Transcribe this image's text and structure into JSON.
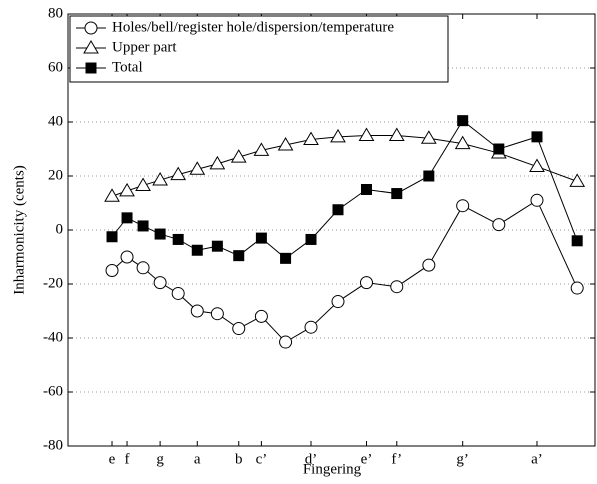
{
  "chart_data": {
    "type": "line",
    "y_label": "Inharmonicity (cents)",
    "x_label": "Fingering",
    "x": [
      1,
      1.059,
      1.122,
      1.189,
      1.26,
      1.335,
      1.414,
      1.498,
      1.587,
      1.682,
      1.782,
      1.888,
      2,
      2.119,
      2.245,
      2.378,
      2.52,
      2.67,
      2.828
    ],
    "series": [
      {
        "name": "Holes/bell/register hole/dispersion/temperature",
        "color": "#000000",
        "marker": "circle",
        "values": [
          -15,
          -10,
          -14,
          -19.5,
          -23.5,
          -30,
          -31,
          -36.5,
          -32,
          -41.5,
          -36,
          -26.5,
          -19.5,
          -21,
          -13,
          9,
          2,
          11,
          -21.5
        ]
      },
      {
        "name": "Upper part",
        "color": "#000000",
        "marker": "triangle",
        "values": [
          12.5,
          14.5,
          16.5,
          18.5,
          20.5,
          22.5,
          24.5,
          27,
          29.5,
          31.5,
          33.5,
          34.5,
          35,
          35,
          34,
          32,
          28.5,
          23.5,
          18
        ]
      },
      {
        "name": "Total",
        "color": "#000000",
        "marker": "square",
        "values": [
          -2.5,
          4.5,
          1.5,
          -1.5,
          -3.5,
          -7.5,
          -6,
          -9.5,
          -3,
          -10.5,
          -3.5,
          7.5,
          15,
          13.5,
          20,
          40.5,
          30,
          34.5,
          -4
        ]
      }
    ],
    "xlim": [
      0.827,
      2.898
    ],
    "xticks": [
      {
        "value": 1,
        "label": "e"
      },
      {
        "value": 1.059,
        "label": "f"
      },
      {
        "value": 1.189,
        "label": "g"
      },
      {
        "value": 1.335,
        "label": "a"
      },
      {
        "value": 1.498,
        "label": "b"
      },
      {
        "value": 1.587,
        "label": "c’"
      },
      {
        "value": 1.782,
        "label": "d’"
      },
      {
        "value": 2,
        "label": "e’"
      },
      {
        "value": 2.119,
        "label": "f’"
      },
      {
        "value": 2.378,
        "label": "g’"
      },
      {
        "value": 2.67,
        "label": "a’"
      }
    ],
    "ylim": [
      -80,
      80
    ],
    "yticks": [
      -80,
      -60,
      -40,
      -20,
      0,
      20,
      40,
      60,
      80
    ],
    "grid": true,
    "legend": "upper-left"
  }
}
